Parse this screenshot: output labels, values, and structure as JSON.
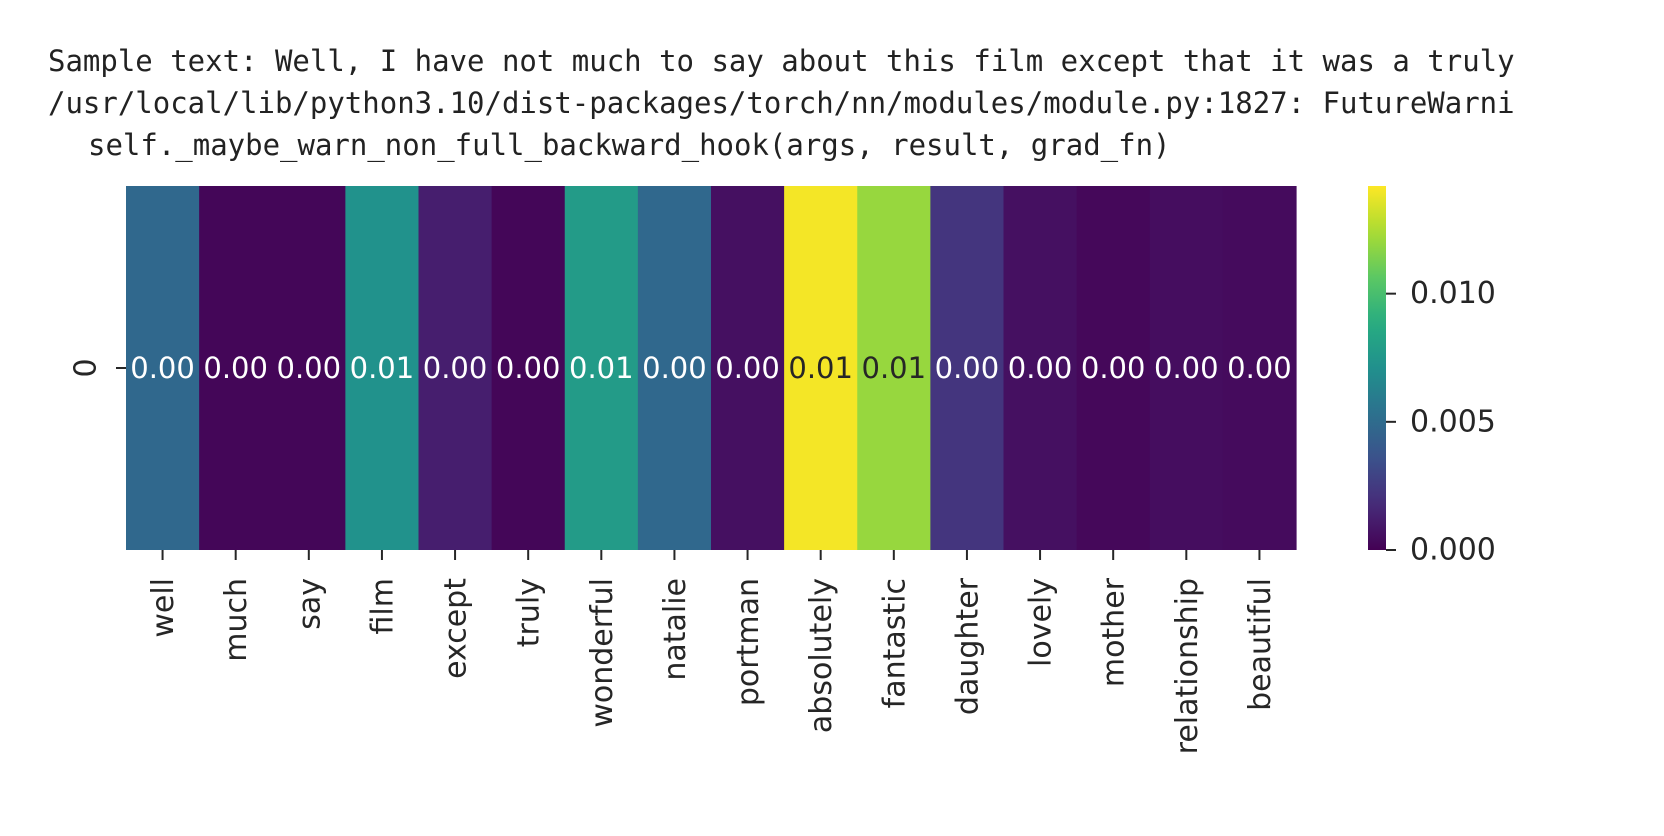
{
  "output": {
    "lines": [
      "Sample text: Well, I have not much to say about this film except that it was a truly",
      "/usr/local/lib/python3.10/dist-packages/torch/nn/modules/module.py:1827: FutureWarni",
      "self._maybe_warn_non_full_backward_hook(args, result, grad_fn)"
    ]
  },
  "chart_data": {
    "type": "heatmap",
    "title": "",
    "xlabel": "",
    "ylabel": "",
    "rows": [
      "0"
    ],
    "columns": [
      "well",
      "much",
      "say",
      "film",
      "except",
      "truly",
      "wonderful",
      "natalie",
      "portman",
      "absolutely",
      "fantastic",
      "daughter",
      "lovely",
      "mother",
      "relationship",
      "beautiful"
    ],
    "values": [
      [
        0.0048,
        0.0002,
        0.0002,
        0.0072,
        0.0012,
        0.0002,
        0.0078,
        0.0048,
        0.0006,
        0.014,
        0.012,
        0.0022,
        0.0006,
        0.0003,
        0.0005,
        0.0004
      ]
    ],
    "annotations": [
      [
        "0.00",
        "0.00",
        "0.00",
        "0.01",
        "0.00",
        "0.00",
        "0.01",
        "0.00",
        "0.00",
        "0.01",
        "0.01",
        "0.00",
        "0.00",
        "0.00",
        "0.00",
        "0.00"
      ]
    ],
    "colormap": "viridis",
    "vmin": 0.0,
    "vmax": 0.0142,
    "colorbar": {
      "ticks": [
        0.0,
        0.005,
        0.01
      ],
      "tick_labels": [
        "0.000",
        "0.005",
        "0.010"
      ]
    },
    "grid": false,
    "legend": "colorbar-right"
  }
}
